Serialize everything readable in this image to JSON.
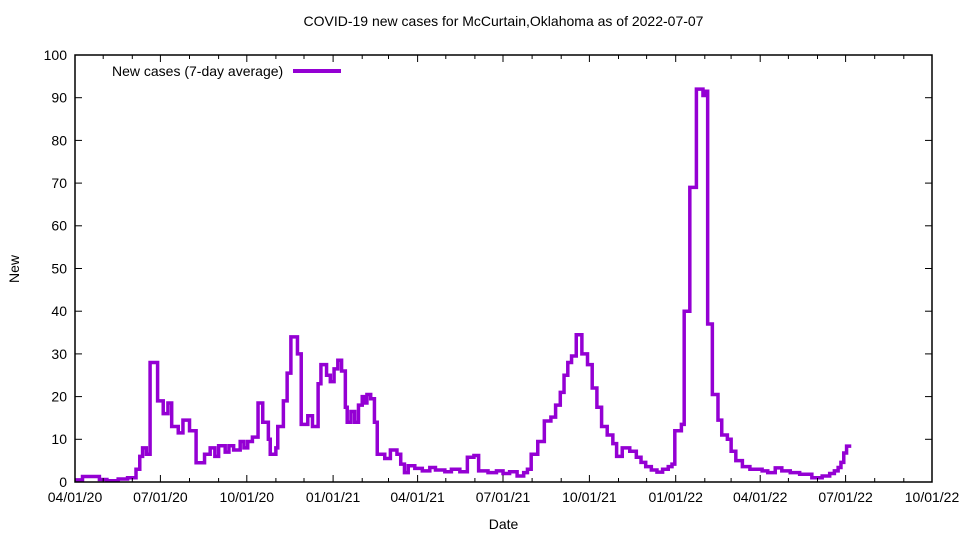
{
  "page": {
    "background": "#ffffff"
  },
  "chart_data": {
    "type": "line",
    "style": "steps",
    "title": "COVID-19 new cases for McCurtain,Oklahoma as of 2022-07-07",
    "xlabel": "Date",
    "ylabel": "New",
    "legend": {
      "label": "New cases (7-day average)",
      "position": "top-left-inside"
    },
    "line_color": "#9400d3",
    "axis_color": "#000000",
    "grid": false,
    "ylim": [
      0,
      100
    ],
    "y_tick_step": 10,
    "y_ticks": [
      0,
      10,
      20,
      30,
      40,
      50,
      60,
      70,
      80,
      90,
      100
    ],
    "x_range_days": [
      0,
      913
    ],
    "x_major_ticks": [
      {
        "day": 0,
        "label": "04/01/20"
      },
      {
        "day": 91,
        "label": "07/01/20"
      },
      {
        "day": 183,
        "label": "10/01/20"
      },
      {
        "day": 275,
        "label": "01/01/21"
      },
      {
        "day": 365,
        "label": "04/01/21"
      },
      {
        "day": 456,
        "label": "07/01/21"
      },
      {
        "day": 548,
        "label": "10/01/21"
      },
      {
        "day": 640,
        "label": "01/01/22"
      },
      {
        "day": 730,
        "label": "04/01/22"
      },
      {
        "day": 821,
        "label": "07/01/22"
      },
      {
        "day": 913,
        "label": "10/01/22"
      }
    ],
    "x_minor_tick_days": [
      30,
      61,
      122,
      153,
      214,
      244,
      306,
      334,
      395,
      426,
      487,
      518,
      579,
      609,
      671,
      699,
      760,
      791,
      852,
      883
    ],
    "series": [
      {
        "name": "New cases (7-day average)",
        "points_day_value": [
          [
            0,
            0.5
          ],
          [
            8,
            1.3
          ],
          [
            26,
            0.6
          ],
          [
            34,
            0.3
          ],
          [
            46,
            0.7
          ],
          [
            56,
            1
          ],
          [
            65,
            3
          ],
          [
            69,
            6
          ],
          [
            72,
            8
          ],
          [
            76,
            6.5
          ],
          [
            80,
            28
          ],
          [
            88,
            19
          ],
          [
            94,
            16
          ],
          [
            99,
            18.5
          ],
          [
            103,
            13
          ],
          [
            110,
            11.5
          ],
          [
            115,
            14.5
          ],
          [
            122,
            12
          ],
          [
            129,
            4.5
          ],
          [
            138,
            6.5
          ],
          [
            144,
            8
          ],
          [
            149,
            6
          ],
          [
            153,
            8.5
          ],
          [
            160,
            7
          ],
          [
            164,
            8.5
          ],
          [
            169,
            7.5
          ],
          [
            176,
            9.5
          ],
          [
            180,
            8
          ],
          [
            184,
            9.5
          ],
          [
            189,
            10.5
          ],
          [
            195,
            18.5
          ],
          [
            200,
            14
          ],
          [
            206,
            10
          ],
          [
            208,
            6.5
          ],
          [
            214,
            8
          ],
          [
            216,
            13
          ],
          [
            222,
            19
          ],
          [
            226,
            25.5
          ],
          [
            230,
            34
          ],
          [
            237,
            30
          ],
          [
            241,
            13.5
          ],
          [
            248,
            15.5
          ],
          [
            253,
            13
          ],
          [
            259,
            23
          ],
          [
            262,
            27.5
          ],
          [
            268,
            25
          ],
          [
            272,
            23.5
          ],
          [
            276,
            26.5
          ],
          [
            280,
            28.5
          ],
          [
            284,
            26
          ],
          [
            288,
            17.5
          ],
          [
            290,
            14
          ],
          [
            294,
            16.5
          ],
          [
            298,
            14
          ],
          [
            302,
            18
          ],
          [
            306,
            20
          ],
          [
            309,
            18.5
          ],
          [
            311,
            20.5
          ],
          [
            315,
            19.5
          ],
          [
            319,
            14
          ],
          [
            322,
            6.5
          ],
          [
            330,
            5.5
          ],
          [
            336,
            7.5
          ],
          [
            343,
            6.5
          ],
          [
            347,
            4.2
          ],
          [
            351,
            2.2
          ],
          [
            355,
            3.8
          ],
          [
            362,
            3.2
          ],
          [
            370,
            2.6
          ],
          [
            378,
            3.4
          ],
          [
            384,
            2.8
          ],
          [
            394,
            2.4
          ],
          [
            401,
            3
          ],
          [
            410,
            2.4
          ],
          [
            418,
            5.8
          ],
          [
            425,
            6.2
          ],
          [
            430,
            2.6
          ],
          [
            440,
            2.2
          ],
          [
            449,
            2.6
          ],
          [
            456,
            2
          ],
          [
            463,
            2.4
          ],
          [
            471,
            1.4
          ],
          [
            478,
            2.2
          ],
          [
            482,
            3
          ],
          [
            486,
            6.5
          ],
          [
            493,
            9.5
          ],
          [
            500,
            14.3
          ],
          [
            507,
            15.2
          ],
          [
            512,
            18
          ],
          [
            517,
            21
          ],
          [
            521,
            25
          ],
          [
            525,
            28
          ],
          [
            529,
            29.5
          ],
          [
            534,
            34.5
          ],
          [
            540,
            30
          ],
          [
            546,
            27.5
          ],
          [
            551,
            22
          ],
          [
            556,
            17.5
          ],
          [
            561,
            13
          ],
          [
            567,
            11
          ],
          [
            573,
            9
          ],
          [
            577,
            6
          ],
          [
            583,
            8
          ],
          [
            591,
            7.2
          ],
          [
            598,
            5.8
          ],
          [
            603,
            4.6
          ],
          [
            608,
            3.6
          ],
          [
            614,
            2.8
          ],
          [
            620,
            2.3
          ],
          [
            626,
            3
          ],
          [
            632,
            3.6
          ],
          [
            636,
            4.2
          ],
          [
            639,
            12
          ],
          [
            646,
            13.5
          ],
          [
            649,
            40
          ],
          [
            655,
            69
          ],
          [
            662,
            92
          ],
          [
            669,
            90.5
          ],
          [
            671,
            91.5
          ],
          [
            674,
            37
          ],
          [
            679,
            20.5
          ],
          [
            685,
            14.5
          ],
          [
            689,
            11
          ],
          [
            695,
            10
          ],
          [
            699,
            7.2
          ],
          [
            704,
            5
          ],
          [
            711,
            3.6
          ],
          [
            719,
            3
          ],
          [
            732,
            2.6
          ],
          [
            738,
            2.2
          ],
          [
            746,
            3.3
          ],
          [
            753,
            2.6
          ],
          [
            762,
            2.2
          ],
          [
            772,
            1.8
          ],
          [
            785,
            1
          ],
          [
            796,
            1.4
          ],
          [
            804,
            2
          ],
          [
            809,
            2.6
          ],
          [
            813,
            3.4
          ],
          [
            816,
            4.6
          ],
          [
            819,
            6.8
          ],
          [
            822,
            8.4
          ],
          [
            827,
            8.4
          ]
        ]
      }
    ]
  }
}
